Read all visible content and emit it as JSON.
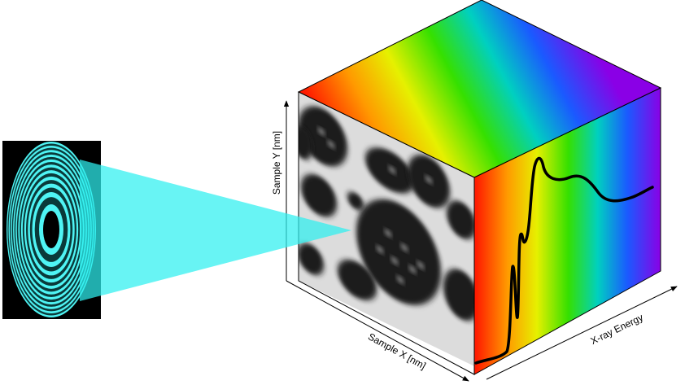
{
  "axes": {
    "y_label": "Sample Y [nm]",
    "x_label": "Sample X [nm]",
    "energy_label": "X-ray Energy"
  }
}
